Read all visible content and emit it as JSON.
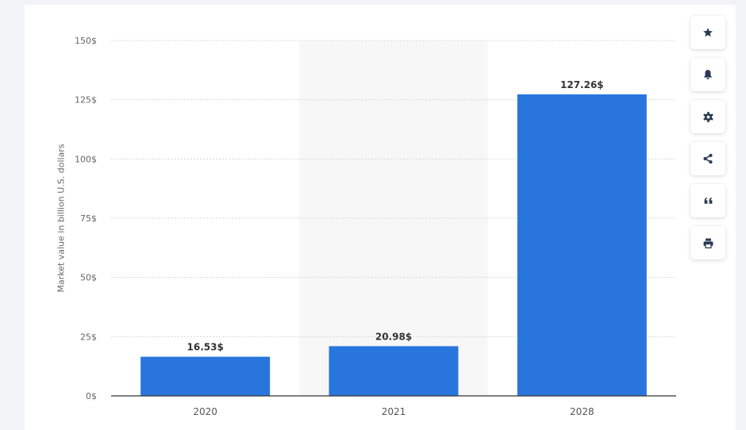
{
  "chart_data": {
    "type": "bar",
    "categories": [
      "2020",
      "2021",
      "2028"
    ],
    "values": [
      16.53,
      20.98,
      127.26
    ],
    "value_labels": [
      "16.53$",
      "20.98$",
      "127.26$"
    ],
    "title": "",
    "xlabel": "",
    "ylabel": "Market value in billion U.S. dollars",
    "ylim": [
      0,
      150
    ],
    "yticks": [
      0,
      25,
      50,
      75,
      100,
      125,
      150
    ],
    "ytick_labels": [
      "0$",
      "25$",
      "50$",
      "75$",
      "100$",
      "125$",
      "150$"
    ],
    "grid": true,
    "highlighted_category": "2021",
    "colors": {
      "bar": "#2876dd",
      "grid": "#d7d7d7",
      "highlight_band": "#f7f7f7",
      "axis": "#333333",
      "tick_text": "#666666",
      "value_text": "#333333"
    }
  },
  "toolbar": {
    "buttons": [
      {
        "name": "favorite-button",
        "icon": "star-icon"
      },
      {
        "name": "notification-button",
        "icon": "bell-icon"
      },
      {
        "name": "settings-button",
        "icon": "gear-icon"
      },
      {
        "name": "share-button",
        "icon": "share-icon"
      },
      {
        "name": "cite-button",
        "icon": "quote-icon"
      },
      {
        "name": "print-button",
        "icon": "printer-icon"
      }
    ],
    "icon_color": "#2b3a55"
  }
}
